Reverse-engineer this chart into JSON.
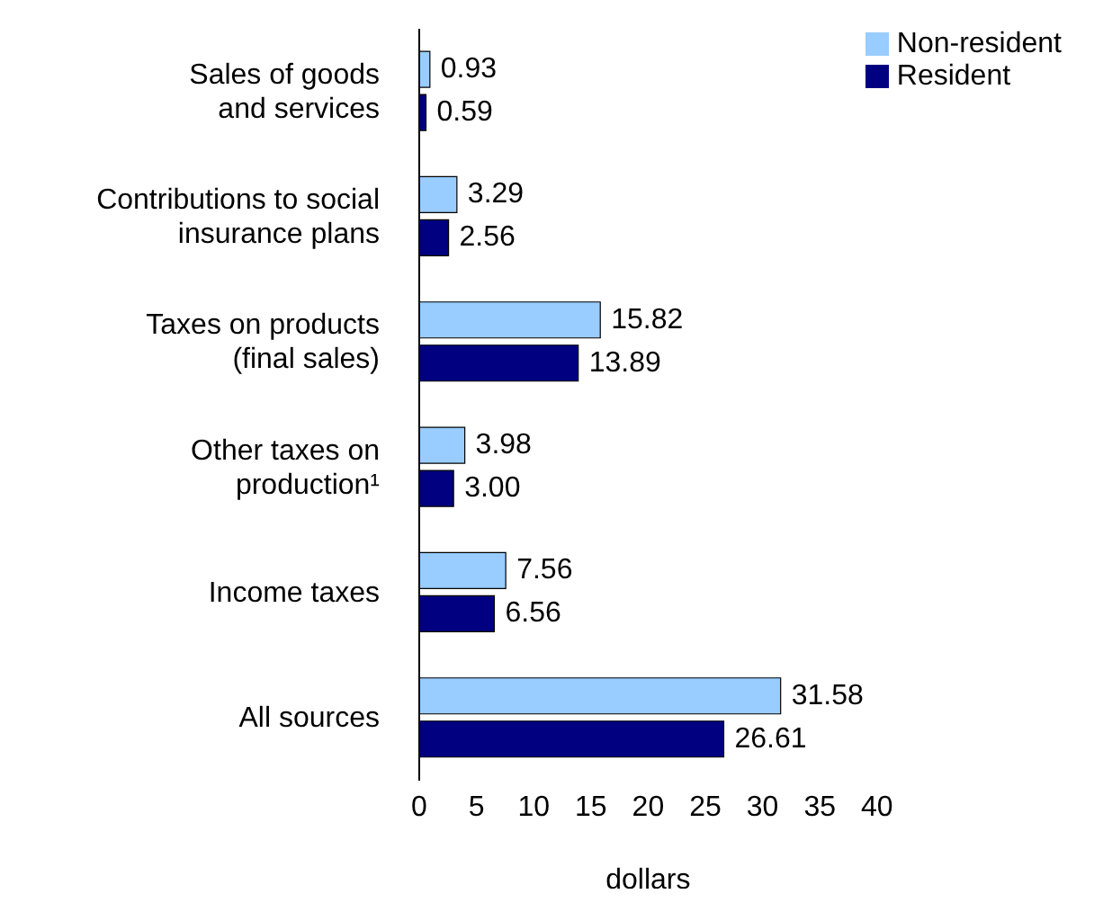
{
  "chart_data": {
    "type": "bar",
    "orientation": "horizontal",
    "xlabel": "dollars",
    "categories": [
      "Sales of goods\nand services",
      "Contributions to social\ninsurance plans",
      "Taxes on products\n(final sales)",
      "Other taxes on\nproduction¹",
      "Income taxes",
      "All sources"
    ],
    "series": [
      {
        "name": "Non-resident",
        "color": "#99ccff",
        "values": [
          0.93,
          3.29,
          15.82,
          3.98,
          7.56,
          31.58
        ],
        "value_labels": [
          "0.93",
          "3.29",
          "15.82",
          "3.98",
          "7.56",
          "31.58"
        ]
      },
      {
        "name": "Resident",
        "color": "#000080",
        "values": [
          0.59,
          2.56,
          13.89,
          3.0,
          6.56,
          26.61
        ],
        "value_labels": [
          "0.59",
          "2.56",
          "13.89",
          "3.00",
          "6.56",
          "26.61"
        ]
      }
    ],
    "xlim": [
      0,
      40
    ],
    "xticks": [
      0,
      5,
      10,
      15,
      20,
      25,
      30,
      35,
      40
    ],
    "grid": false,
    "legend": "top right"
  }
}
